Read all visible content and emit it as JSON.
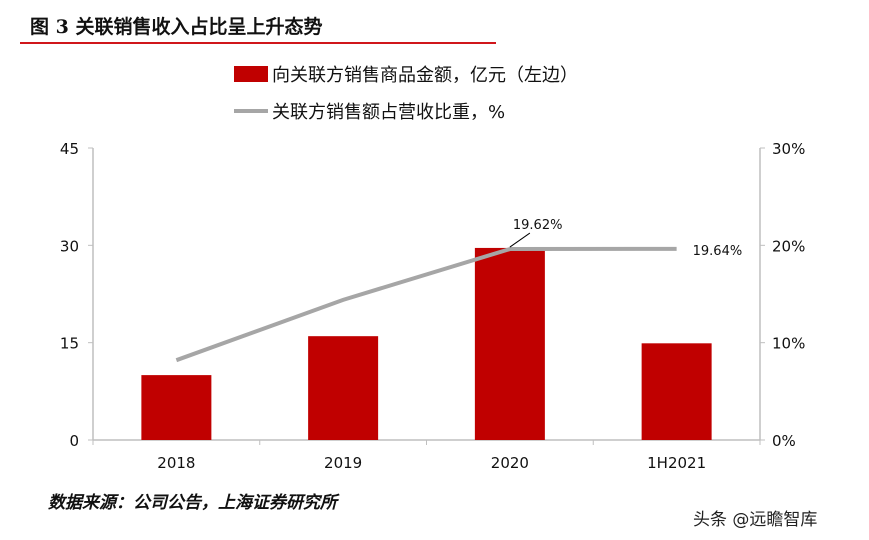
{
  "title": "图 3 关联销售收入占比呈上升态势",
  "source": "数据来源：公司公告，上海证券研究所",
  "watermark": "头条 @远瞻智库",
  "chart_data": {
    "type": "bar+line",
    "categories": [
      "2018",
      "2019",
      "2020",
      "1H2021"
    ],
    "series": [
      {
        "name": "向关联方销售商品金额，亿元（左边）",
        "type": "bar",
        "axis": "left",
        "color": "#c00000",
        "values": [
          10.0,
          16.0,
          29.6,
          14.9
        ]
      },
      {
        "name": "关联方销售额占营收比重，%",
        "type": "line",
        "axis": "right",
        "color": "#a6a6a6",
        "values": [
          8.2,
          14.4,
          19.62,
          19.64
        ]
      }
    ],
    "data_labels": [
      "19.62%",
      "19.64%"
    ],
    "left_axis": {
      "range": [
        0,
        45
      ],
      "ticks": [
        "0",
        "15",
        "30",
        "45"
      ]
    },
    "right_axis": {
      "range": [
        0,
        30
      ],
      "ticks": [
        "0%",
        "10%",
        "20%",
        "30%"
      ]
    },
    "legend_position": "top",
    "grid": false
  }
}
